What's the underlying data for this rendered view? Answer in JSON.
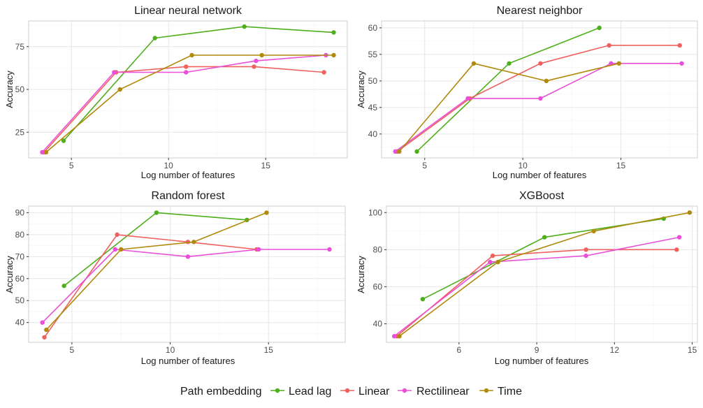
{
  "colors": {
    "Lead lag": "#4daf1a",
    "Linear": "#f0605d",
    "Rectilinear": "#e94fd8",
    "Time": "#b08a0b",
    "grid_major": "#e6e6e6",
    "grid_minor": "#f3f3f3",
    "border": "#cfcfcf"
  },
  "legend": {
    "title": "Path embedding",
    "entries": [
      "Lead lag",
      "Linear",
      "Rectilinear",
      "Time"
    ]
  },
  "chart_data": [
    {
      "type": "line",
      "title": "Linear neural network",
      "xlabel": "Log number of features",
      "ylabel": "Accuracy",
      "xlim": [
        2.8,
        19.2
      ],
      "ylim": [
        10,
        90
      ],
      "xticks": [
        5,
        10,
        15
      ],
      "yticks": [
        25,
        50,
        75
      ],
      "series": [
        {
          "name": "Lead lag",
          "x": [
            4.6,
            9.3,
            13.9,
            18.5
          ],
          "y": [
            20,
            80,
            86.7,
            83.3
          ]
        },
        {
          "name": "Linear",
          "x": [
            3.6,
            7.3,
            10.9,
            14.4,
            18.0
          ],
          "y": [
            13.3,
            60,
            63.3,
            63.3,
            60
          ]
        },
        {
          "name": "Rectilinear",
          "x": [
            3.5,
            7.2,
            10.9,
            14.5,
            18.1
          ],
          "y": [
            13.3,
            60,
            60,
            66.7,
            70
          ]
        },
        {
          "name": "Time",
          "x": [
            3.7,
            7.5,
            11.2,
            14.8,
            18.5
          ],
          "y": [
            13.3,
            50,
            70,
            70,
            70
          ]
        }
      ]
    },
    {
      "type": "line",
      "title": "Nearest neighbor",
      "xlabel": "Log number of features",
      "ylabel": "Accuracy",
      "xlim": [
        2.8,
        18.9
      ],
      "ylim": [
        35.5,
        61.3
      ],
      "xticks": [
        5,
        10,
        15
      ],
      "yticks": [
        40,
        45,
        50,
        55,
        60
      ],
      "series": [
        {
          "name": "Lead lag",
          "x": [
            4.6,
            9.3,
            13.9
          ],
          "y": [
            36.7,
            53.3,
            60
          ]
        },
        {
          "name": "Linear",
          "x": [
            3.6,
            7.3,
            10.9,
            14.4,
            18.0
          ],
          "y": [
            36.7,
            46.7,
            53.3,
            56.7,
            56.7
          ]
        },
        {
          "name": "Rectilinear",
          "x": [
            3.5,
            7.2,
            10.9,
            14.5,
            18.1
          ],
          "y": [
            36.7,
            46.7,
            46.7,
            53.3,
            53.3
          ]
        },
        {
          "name": "Time",
          "x": [
            3.7,
            7.5,
            11.2,
            14.9
          ],
          "y": [
            36.7,
            53.3,
            50,
            53.3
          ]
        }
      ]
    },
    {
      "type": "line",
      "title": "Random forest",
      "xlabel": "Log number of features",
      "ylabel": "Accuracy",
      "xlim": [
        2.8,
        18.9
      ],
      "ylim": [
        31,
        93
      ],
      "xticks": [
        5,
        10,
        15
      ],
      "yticks": [
        40,
        50,
        60,
        70,
        80,
        90
      ],
      "series": [
        {
          "name": "Lead lag",
          "x": [
            4.6,
            9.3,
            13.9
          ],
          "y": [
            56.7,
            90,
            86.7
          ]
        },
        {
          "name": "Linear",
          "x": [
            3.6,
            7.3,
            10.9,
            14.4
          ],
          "y": [
            33.3,
            80,
            76.7,
            73.3
          ]
        },
        {
          "name": "Rectilinear",
          "x": [
            3.5,
            7.2,
            10.9,
            14.5,
            18.1
          ],
          "y": [
            40,
            73.3,
            70,
            73.3,
            73.3
          ]
        },
        {
          "name": "Time",
          "x": [
            3.7,
            7.5,
            11.2,
            14.9
          ],
          "y": [
            36.7,
            73.3,
            76.7,
            90
          ]
        }
      ]
    },
    {
      "type": "line",
      "title": "XGBoost",
      "xlabel": "Log number of features",
      "ylabel": "Accuracy",
      "xlim": [
        3.2,
        15.2
      ],
      "ylim": [
        30,
        103.5
      ],
      "xticks": [
        6,
        9,
        12,
        15
      ],
      "yticks": [
        40,
        60,
        80,
        100
      ],
      "series": [
        {
          "name": "Lead lag",
          "x": [
            4.6,
            9.3,
            13.9
          ],
          "y": [
            53.3,
            86.7,
            96.7
          ]
        },
        {
          "name": "Linear",
          "x": [
            3.6,
            7.3,
            10.9,
            14.4
          ],
          "y": [
            33.3,
            76.7,
            80,
            80
          ]
        },
        {
          "name": "Rectilinear",
          "x": [
            3.5,
            7.2,
            10.9,
            14.5
          ],
          "y": [
            33.3,
            73.3,
            76.7,
            86.7
          ]
        },
        {
          "name": "Time",
          "x": [
            3.7,
            7.5,
            11.2,
            14.9
          ],
          "y": [
            33.3,
            73.3,
            90,
            100
          ]
        }
      ]
    }
  ]
}
